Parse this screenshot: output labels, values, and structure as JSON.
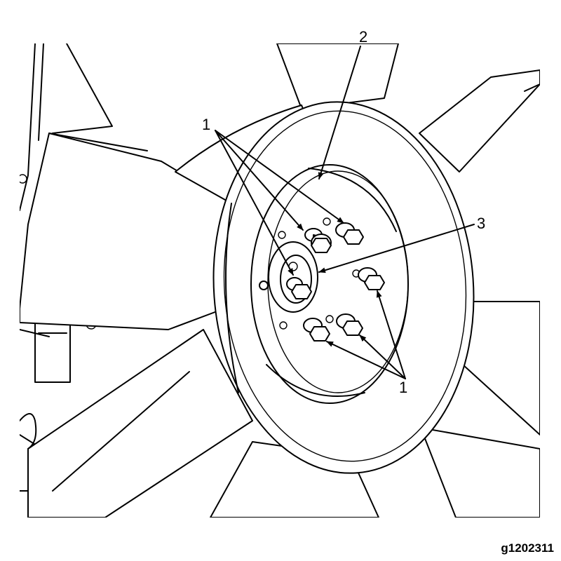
{
  "callouts": {
    "c1_top": "1",
    "c2": "2",
    "c3": "3",
    "c1_bottom": "1"
  },
  "figure_id": "g1202311"
}
